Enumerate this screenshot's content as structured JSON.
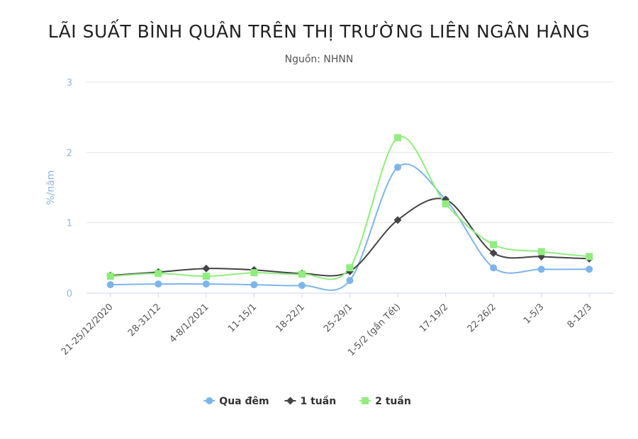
{
  "chart_data": {
    "type": "line",
    "title": "LÃI SUẤT BÌNH QUÂN TRÊN THỊ TRƯỜNG LIÊN NGÂN HÀNG",
    "subtitle": "Nguồn: NHNN",
    "ylabel": "%/năm",
    "xlabel": "",
    "ylim": [
      0,
      3
    ],
    "yticks": [
      "0",
      "1",
      "2",
      "3"
    ],
    "grid": true,
    "legend_position": "bottom",
    "categories": [
      "21-25/12/2020",
      "28-31/12",
      "4-8/1/2021",
      "11-15/1",
      "18-22/1",
      "25-29/1",
      "1-5/2 (gần Tết)",
      "17-19/2",
      "22-26/2",
      "1-5/3",
      "8-12/3"
    ],
    "series": [
      {
        "name": "Qua đêm",
        "color": "#7cb5ec",
        "marker": "circle",
        "values": [
          0.12,
          0.13,
          0.13,
          0.12,
          0.11,
          0.18,
          1.79,
          1.33,
          0.36,
          0.34,
          0.34
        ]
      },
      {
        "name": "1 tuần",
        "color": "#434348",
        "marker": "diamond",
        "values": [
          0.25,
          0.3,
          0.35,
          0.33,
          0.28,
          0.31,
          1.04,
          1.33,
          0.57,
          0.52,
          0.49
        ]
      },
      {
        "name": "2 tuần",
        "color": "#90ed7d",
        "marker": "square",
        "values": [
          0.24,
          0.28,
          0.24,
          0.29,
          0.27,
          0.36,
          2.21,
          1.27,
          0.69,
          0.59,
          0.52
        ]
      }
    ]
  }
}
